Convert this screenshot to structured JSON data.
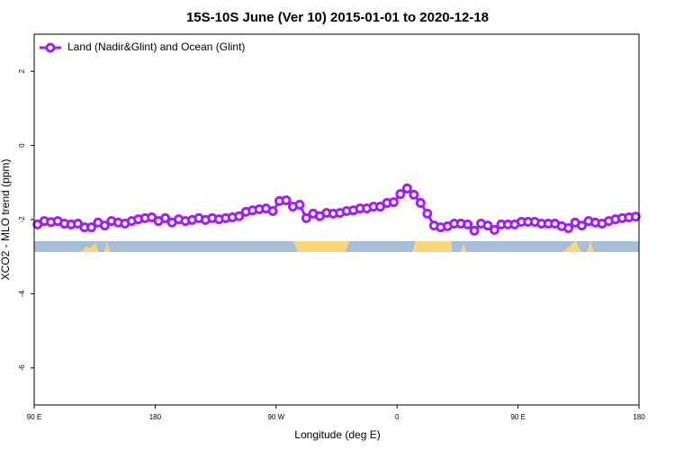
{
  "chart_data": {
    "type": "line",
    "title": "15S-10S June (Ver 10)   2015-01-01 to 2020-12-18",
    "x_label": "Longitude (deg E)",
    "y_label": "XCO2 - MLO trend (ppm)",
    "xlim": [
      90,
      540
    ],
    "ylim": [
      -7,
      3
    ],
    "xticks": [
      {
        "value": 90,
        "label": "90 E"
      },
      {
        "value": 180,
        "label": "180"
      },
      {
        "value": 270,
        "label": "90 W"
      },
      {
        "value": 360,
        "label": "0"
      },
      {
        "value": 450,
        "label": "90 E"
      },
      {
        "value": 540,
        "label": "180"
      }
    ],
    "yticks": [
      -6,
      -4,
      -2,
      0,
      2
    ],
    "legend": "upper left",
    "x": [
      92.5,
      97.5,
      102.5,
      107.5,
      112.5,
      117.5,
      122.5,
      127.5,
      132.5,
      137.5,
      142.5,
      147.5,
      152.5,
      157.5,
      162.5,
      167.5,
      172.5,
      177.5,
      182.5,
      187.5,
      192.5,
      197.5,
      202.5,
      207.5,
      212.5,
      217.5,
      222.5,
      227.5,
      232.5,
      237.5,
      242.5,
      247.5,
      252.5,
      257.5,
      262.5,
      267.5,
      272.5,
      277.5,
      282.5,
      287.5,
      292.5,
      297.5,
      302.5,
      307.5,
      312.5,
      317.5,
      322.5,
      327.5,
      332.5,
      337.5,
      342.5,
      347.5,
      352.5,
      357.5,
      362.5,
      367.5,
      372.5,
      377.5,
      382.5,
      387.5,
      392.5,
      397.5,
      402.5,
      407.5,
      412.5,
      417.5,
      422.5,
      427.5,
      432.5,
      437.5,
      442.5,
      447.5,
      452.5,
      457.5,
      462.5,
      467.5,
      472.5,
      477.5,
      482.5,
      487.5,
      492.5,
      497.5,
      502.5,
      507.5,
      512.5,
      517.5,
      522.5,
      527.5,
      532.5,
      537.5
    ],
    "series": [
      {
        "name": "Land (Nadir&Glint) and Ocean (Glint)",
        "color": "#a020f0",
        "values": [
          -2.13,
          -2.04,
          -2.07,
          -2.04,
          -2.11,
          -2.13,
          -2.11,
          -2.21,
          -2.21,
          -2.08,
          -2.16,
          -2.04,
          -2.08,
          -2.11,
          -2.04,
          -1.99,
          -1.96,
          -1.94,
          -2.04,
          -1.96,
          -2.08,
          -1.99,
          -2.04,
          -2.01,
          -1.96,
          -2.01,
          -1.96,
          -1.99,
          -1.96,
          -1.94,
          -1.91,
          -1.79,
          -1.75,
          -1.72,
          -1.7,
          -1.77,
          -1.5,
          -1.48,
          -1.65,
          -1.6,
          -1.96,
          -1.84,
          -1.91,
          -1.82,
          -1.84,
          -1.82,
          -1.77,
          -1.75,
          -1.7,
          -1.7,
          -1.65,
          -1.65,
          -1.55,
          -1.53,
          -1.31,
          -1.16,
          -1.33,
          -1.55,
          -1.84,
          -2.16,
          -2.21,
          -2.18,
          -2.11,
          -2.11,
          -2.13,
          -2.3,
          -2.11,
          -2.16,
          -2.28,
          -2.13,
          -2.13,
          -2.13,
          -2.06,
          -2.06,
          -2.06,
          -2.11,
          -2.11,
          -2.11,
          -2.18,
          -2.23,
          -2.08,
          -2.16,
          -2.04,
          -2.08,
          -2.11,
          -2.04,
          -1.99,
          -1.96,
          -1.94,
          -1.92
        ]
      }
    ]
  }
}
